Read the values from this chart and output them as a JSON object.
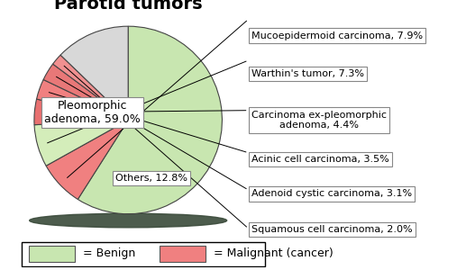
{
  "title": "Parotid tumors",
  "slices": [
    {
      "label": "Pleomorphic adenoma, 59.0%",
      "value": 59.0,
      "color": "#c8e6b0",
      "benign": true
    },
    {
      "label": "Mucoepidermoid carcinoma, 7.9%",
      "value": 7.9,
      "color": "#f08080",
      "benign": false
    },
    {
      "label": "Warthin's tumor, 7.3%",
      "value": 7.3,
      "color": "#d4edba",
      "benign": true
    },
    {
      "label": "Carcinoma ex-pleomorphic\nadenoma, 4.4%",
      "value": 4.4,
      "color": "#e87070",
      "benign": false
    },
    {
      "label": "Acinic cell carcinoma, 3.5%",
      "value": 3.5,
      "color": "#f08080",
      "benign": false
    },
    {
      "label": "Adenoid cystic carcinoma, 3.1%",
      "value": 3.1,
      "color": "#e87878",
      "benign": false
    },
    {
      "label": "Squamous cell carcinoma, 2.0%",
      "value": 2.0,
      "color": "#f09090",
      "benign": false
    },
    {
      "label": "Others, 12.8%",
      "value": 12.8,
      "color": "#d8d8d8",
      "benign": false
    }
  ],
  "legend_benign_color": "#c8e6b0",
  "legend_malignant_color": "#f08080",
  "background_color": "#ffffff",
  "title_fontsize": 14,
  "label_fontsize": 8,
  "startangle": 90
}
